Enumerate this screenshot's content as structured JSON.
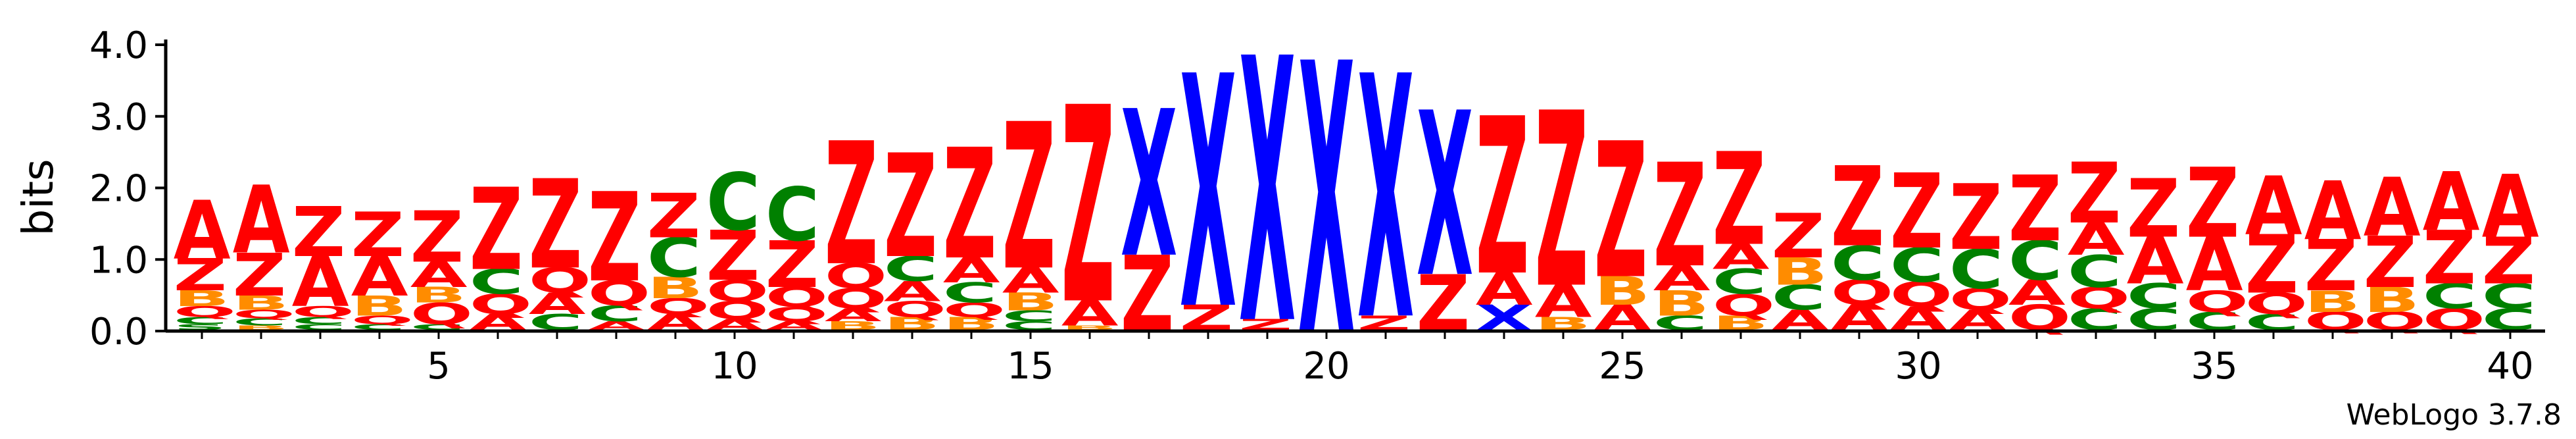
{
  "chart_data": {
    "type": "sequence-logo",
    "ylabel": "bits",
    "ylim": [
      0,
      4.0
    ],
    "yticks": [
      "0.0",
      "1.0",
      "2.0",
      "3.0",
      "4.0"
    ],
    "xticks": [
      "5",
      "10",
      "15",
      "20",
      "25",
      "30",
      "35",
      "40"
    ],
    "xtick_positions": [
      5,
      10,
      15,
      20,
      25,
      30,
      35,
      40
    ],
    "positions": 40,
    "credit": "WebLogo 3.7.8",
    "colors": {
      "A": "#ff0000",
      "Z": "#ff0000",
      "X": "#0000ff",
      "C": "#008000",
      "Q": "#ff0000",
      "B": "#ff8c00",
      "S": "#008000"
    },
    "columns": [
      [
        [
          "S",
          0.08
        ],
        [
          "C",
          0.1
        ],
        [
          "Q",
          0.15
        ],
        [
          "B",
          0.22
        ],
        [
          "Z",
          0.45
        ],
        [
          "A",
          0.82
        ]
      ],
      [
        [
          "B",
          0.06
        ],
        [
          "C",
          0.1
        ],
        [
          "Q",
          0.12
        ],
        [
          "B",
          0.2
        ],
        [
          "Z",
          0.6
        ],
        [
          "A",
          0.95
        ]
      ],
      [
        [
          "C",
          0.08
        ],
        [
          "C",
          0.1
        ],
        [
          "Q",
          0.15
        ],
        [
          "A",
          0.7
        ],
        [
          "Z",
          0.7
        ]
      ],
      [
        [
          "C",
          0.08
        ],
        [
          "Q",
          0.12
        ],
        [
          "B",
          0.28
        ],
        [
          "A",
          0.55
        ],
        [
          "Z",
          0.62
        ]
      ],
      [
        [
          "C",
          0.08
        ],
        [
          "Q",
          0.3
        ],
        [
          "B",
          0.22
        ],
        [
          "A",
          0.35
        ],
        [
          "Z",
          0.72
        ]
      ],
      [
        [
          "A",
          0.22
        ],
        [
          "Q",
          0.28
        ],
        [
          "C",
          0.35
        ],
        [
          "Z",
          1.15
        ]
      ],
      [
        [
          "C",
          0.22
        ],
        [
          "A",
          0.3
        ],
        [
          "Q",
          0.35
        ],
        [
          "Z",
          1.25
        ]
      ],
      [
        [
          "A",
          0.12
        ],
        [
          "C",
          0.22
        ],
        [
          "Q",
          0.35
        ],
        [
          "Z",
          1.25
        ]
      ],
      [
        [
          "A",
          0.22
        ],
        [
          "Q",
          0.22
        ],
        [
          "B",
          0.3
        ],
        [
          "C",
          0.55
        ],
        [
          "Z",
          0.62
        ]
      ],
      [
        [
          "A",
          0.15
        ],
        [
          "Q",
          0.25
        ],
        [
          "Q",
          0.3
        ],
        [
          "Z",
          0.7
        ],
        [
          "C",
          0.8
        ]
      ],
      [
        [
          "A",
          0.12
        ],
        [
          "Q",
          0.2
        ],
        [
          "Q",
          0.28
        ],
        [
          "Z",
          0.65
        ],
        [
          "C",
          0.75
        ]
      ],
      [
        [
          "B",
          0.12
        ],
        [
          "A",
          0.18
        ],
        [
          "Q",
          0.28
        ],
        [
          "Q",
          0.35
        ],
        [
          "Z",
          1.72
        ]
      ],
      [
        [
          "B",
          0.18
        ],
        [
          "Q",
          0.22
        ],
        [
          "A",
          0.28
        ],
        [
          "C",
          0.35
        ],
        [
          "Z",
          1.45
        ]
      ],
      [
        [
          "B",
          0.18
        ],
        [
          "Q",
          0.2
        ],
        [
          "C",
          0.28
        ],
        [
          "A",
          0.35
        ],
        [
          "Z",
          1.55
        ]
      ],
      [
        [
          "C",
          0.12
        ],
        [
          "C",
          0.15
        ],
        [
          "B",
          0.25
        ],
        [
          "A",
          0.35
        ],
        [
          "Z",
          2.05
        ]
      ],
      [
        [
          "B",
          0.06
        ],
        [
          "A",
          0.35
        ],
        [
          "Z",
          2.75
        ]
      ],
      [
        [
          "Z",
          1.05
        ],
        [
          "X",
          2.05
        ]
      ],
      [
        [
          "Z",
          0.35
        ],
        [
          "X",
          3.25
        ]
      ],
      [
        [
          "Z",
          0.15
        ],
        [
          "X",
          3.7
        ]
      ],
      [
        [
          "X",
          3.78
        ]
      ],
      [
        [
          "Z",
          0.2
        ],
        [
          "X",
          3.4
        ]
      ],
      [
        [
          "Z",
          0.78
        ],
        [
          "X",
          2.3
        ]
      ],
      [
        [
          "X",
          0.35
        ],
        [
          "A",
          0.45
        ],
        [
          "Z",
          2.2
        ]
      ],
      [
        [
          "B",
          0.18
        ],
        [
          "A",
          0.45
        ],
        [
          "Z",
          2.45
        ]
      ],
      [
        [
          "A",
          0.35
        ],
        [
          "B",
          0.4
        ],
        [
          "Z",
          1.9
        ]
      ],
      [
        [
          "C",
          0.2
        ],
        [
          "B",
          0.35
        ],
        [
          "A",
          0.35
        ],
        [
          "Z",
          1.45
        ]
      ],
      [
        [
          "B",
          0.2
        ],
        [
          "Q",
          0.3
        ],
        [
          "C",
          0.35
        ],
        [
          "A",
          0.35
        ],
        [
          "Z",
          1.3
        ]
      ],
      [
        [
          "A",
          0.28
        ],
        [
          "C",
          0.35
        ],
        [
          "B",
          0.38
        ],
        [
          "Z",
          0.62
        ]
      ],
      [
        [
          "A",
          0.35
        ],
        [
          "Q",
          0.35
        ],
        [
          "C",
          0.48
        ],
        [
          "Z",
          1.12
        ]
      ],
      [
        [
          "A",
          0.32
        ],
        [
          "Q",
          0.35
        ],
        [
          "C",
          0.48
        ],
        [
          "Z",
          1.05
        ]
      ],
      [
        [
          "A",
          0.28
        ],
        [
          "Q",
          0.3
        ],
        [
          "C",
          0.55
        ],
        [
          "Z",
          0.92
        ]
      ],
      [
        [
          "Q",
          0.35
        ],
        [
          "A",
          0.35
        ],
        [
          "C",
          0.55
        ],
        [
          "Z",
          0.92
        ]
      ],
      [
        [
          "C",
          0.3
        ],
        [
          "Q",
          0.3
        ],
        [
          "C",
          0.45
        ],
        [
          "A",
          0.45
        ],
        [
          "Z",
          0.85
        ]
      ],
      [
        [
          "C",
          0.3
        ],
        [
          "C",
          0.35
        ],
        [
          "A",
          0.65
        ],
        [
          "Z",
          0.82
        ]
      ],
      [
        [
          "C",
          0.25
        ],
        [
          "Q",
          0.3
        ],
        [
          "A",
          0.75
        ],
        [
          "Z",
          0.98
        ]
      ],
      [
        [
          "C",
          0.22
        ],
        [
          "Q",
          0.3
        ],
        [
          "Z",
          0.82
        ],
        [
          "A",
          0.82
        ]
      ],
      [
        [
          "Q",
          0.25
        ],
        [
          "B",
          0.3
        ],
        [
          "Z",
          0.72
        ],
        [
          "A",
          0.82
        ]
      ],
      [
        [
          "Q",
          0.25
        ],
        [
          "B",
          0.35
        ],
        [
          "Z",
          0.72
        ],
        [
          "A",
          0.82
        ]
      ],
      [
        [
          "Q",
          0.3
        ],
        [
          "C",
          0.35
        ],
        [
          "Z",
          0.75
        ],
        [
          "A",
          0.82
        ]
      ],
      [
        [
          "C",
          0.3
        ],
        [
          "C",
          0.35
        ],
        [
          "Z",
          0.65
        ],
        [
          "A",
          0.88
        ]
      ]
    ]
  }
}
